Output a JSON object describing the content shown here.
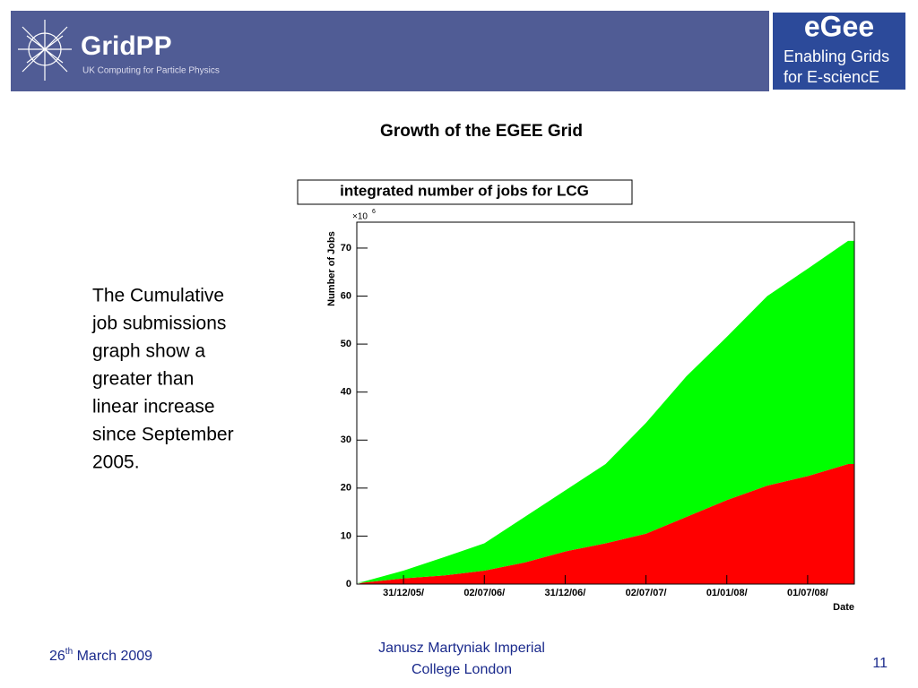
{
  "header": {
    "logo_left": "GridPP",
    "logo_left_subtitle": "UK Computing for Particle Physics",
    "logo_right": "eGee",
    "logo_right_line1": "Enabling Grids",
    "logo_right_line2": "for E-sciencE"
  },
  "slide_title": "Growth of the EGEE Grid",
  "body_lines": [
    " The Cumulative",
    "job submissions",
    "graph show a",
    "greater than",
    "linear increase",
    "since September",
    "2005."
  ],
  "chart_data": {
    "type": "stacked_area",
    "title": "integrated number of jobs for LCG",
    "ylabel": "Number of Jobs",
    "xlabel": "Date",
    "y_multiplier": "×10",
    "y_multiplier_exponent": "6",
    "categories": [
      null,
      "31/12/05/",
      null,
      "02/07/06/",
      null,
      "31/12/06/",
      null,
      "02/07/07/",
      null,
      "01/01/08/",
      null,
      "01/07/08/",
      null
    ],
    "series": [
      {
        "color": "#ff0000",
        "values": [
          0.3,
          1.2,
          1.8,
          2.8,
          4.5,
          6.8,
          8.5,
          10.5,
          14,
          17.5,
          20.5,
          22.5,
          25
        ]
      },
      {
        "color": "#00ff00",
        "values": [
          0.2,
          1.6,
          3.8,
          5.7,
          9.5,
          12.7,
          16.5,
          23.1,
          29.3,
          34,
          39.5,
          43.2,
          46.5
        ]
      }
    ],
    "ylim": [
      0,
      75.4
    ],
    "yticks": [
      0,
      10,
      20,
      30,
      40,
      50,
      60,
      70
    ]
  },
  "footer": {
    "date_day": "26",
    "date_sup": "th",
    "date_rest": " March 2009",
    "author_line1": "Janusz Martyniak Imperial",
    "author_line2": "College London",
    "page": "11"
  }
}
